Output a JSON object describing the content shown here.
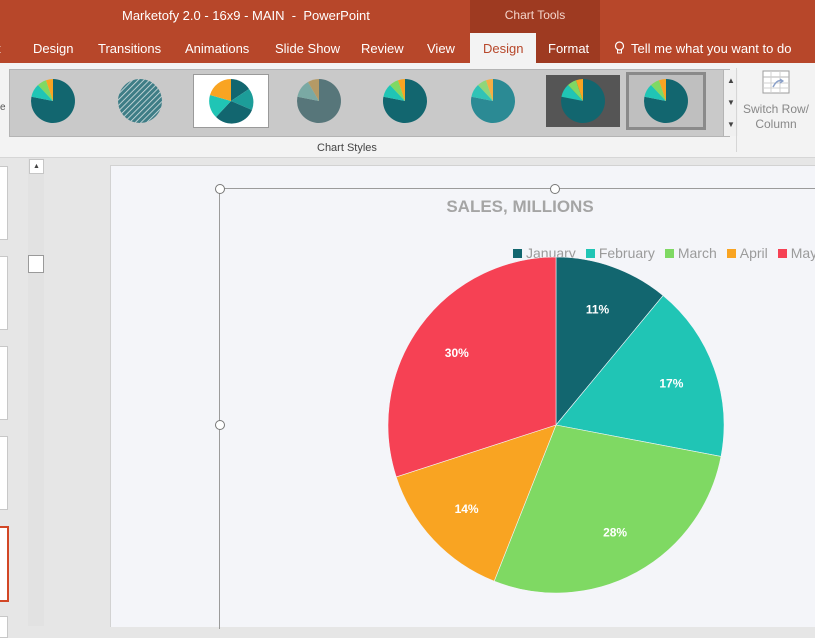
{
  "window": {
    "title": "Marketofy 2.0 - 16x9 - MAIN  -  PowerPoint",
    "context_tab_group": "Chart Tools"
  },
  "tabs": [
    {
      "label": "t",
      "active": false
    },
    {
      "label": "Design",
      "active": false
    },
    {
      "label": "Transitions",
      "active": false
    },
    {
      "label": "Animations",
      "active": false
    },
    {
      "label": "Slide Show",
      "active": false
    },
    {
      "label": "Review",
      "active": false
    },
    {
      "label": "View",
      "active": false
    },
    {
      "label": "Design",
      "active": true
    },
    {
      "label": "Format",
      "active": false
    }
  ],
  "tell_me": {
    "label": "Tell me what you want to do",
    "icon": "lightbulb-icon"
  },
  "ribbon": {
    "left_edge_text": "e",
    "gallery_label": "Chart Styles",
    "switch_row_column": {
      "line1": "Switch Row/",
      "line2": "Column",
      "icon": "switch-row-column-icon"
    },
    "chart_style_count": 8,
    "selected_style_index": 2
  },
  "colors": {
    "accent": "#b7472a",
    "january": "#12666f",
    "february": "#20c5b5",
    "march": "#7fd963",
    "april": "#f9a422",
    "may": "#f64154"
  },
  "chart_data": {
    "type": "pie",
    "title": "SALES, MILLIONS",
    "legend_position": "top",
    "categories": [
      "January",
      "February",
      "March",
      "April",
      "May"
    ],
    "values": [
      11,
      17,
      28,
      14,
      30
    ],
    "labels": [
      "11%",
      "17%",
      "28%",
      "14%",
      "30%"
    ],
    "colors": [
      "#12666f",
      "#20c5b5",
      "#7fd963",
      "#f9a422",
      "#f64154"
    ]
  }
}
